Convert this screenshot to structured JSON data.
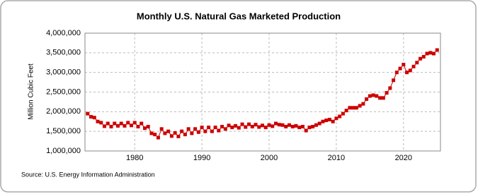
{
  "chart_data": {
    "type": "line",
    "title": "Monthly U.S. Natural Gas Marketed Production",
    "y_label": "Million Cubic Feet",
    "source": "Source: U.S. Energy Information Administration",
    "x": [
      1973,
      1973.5,
      1974,
      1974.5,
      1975,
      1975.5,
      1976,
      1976.5,
      1977,
      1977.5,
      1978,
      1978.5,
      1979,
      1979.5,
      1980,
      1980.5,
      1981,
      1981.5,
      1982,
      1982.5,
      1983,
      1983.5,
      1984,
      1984.5,
      1985,
      1985.5,
      1986,
      1986.5,
      1987,
      1987.5,
      1988,
      1988.5,
      1989,
      1989.5,
      1990,
      1990.5,
      1991,
      1991.5,
      1992,
      1992.5,
      1993,
      1993.5,
      1994,
      1994.5,
      1995,
      1995.5,
      1996,
      1996.5,
      1997,
      1997.5,
      1998,
      1998.5,
      1999,
      1999.5,
      2000,
      2000.5,
      2001,
      2001.5,
      2002,
      2002.5,
      2003,
      2003.5,
      2004,
      2004.5,
      2005,
      2005.5,
      2006,
      2006.5,
      2007,
      2007.5,
      2008,
      2008.5,
      2009,
      2009.5,
      2010,
      2010.5,
      2011,
      2011.5,
      2012,
      2012.5,
      2013,
      2013.5,
      2014,
      2014.5,
      2015,
      2015.5,
      2016,
      2016.5,
      2017,
      2017.5,
      2018,
      2018.5,
      2019,
      2019.5,
      2020,
      2020.5,
      2021,
      2021.5,
      2022,
      2022.5,
      2023,
      2023.5,
      2024,
      2024.5,
      2025
    ],
    "series": [
      {
        "color": "#cc0000",
        "values": [
          1950000,
          1870000,
          1850000,
          1750000,
          1720000,
          1630000,
          1700000,
          1620000,
          1700000,
          1640000,
          1700000,
          1640000,
          1720000,
          1650000,
          1720000,
          1620000,
          1700000,
          1580000,
          1620000,
          1450000,
          1420000,
          1340000,
          1560000,
          1450000,
          1500000,
          1380000,
          1460000,
          1370000,
          1500000,
          1420000,
          1560000,
          1450000,
          1560000,
          1480000,
          1600000,
          1500000,
          1600000,
          1500000,
          1600000,
          1520000,
          1620000,
          1560000,
          1650000,
          1600000,
          1640000,
          1590000,
          1680000,
          1610000,
          1680000,
          1620000,
          1670000,
          1610000,
          1650000,
          1600000,
          1660000,
          1630000,
          1700000,
          1670000,
          1660000,
          1620000,
          1660000,
          1620000,
          1640000,
          1600000,
          1620000,
          1520000,
          1600000,
          1620000,
          1660000,
          1700000,
          1750000,
          1780000,
          1800000,
          1750000,
          1830000,
          1880000,
          1950000,
          2030000,
          2100000,
          2100000,
          2100000,
          2150000,
          2200000,
          2320000,
          2400000,
          2420000,
          2400000,
          2350000,
          2350000,
          2480000,
          2600000,
          2800000,
          3000000,
          3100000,
          3200000,
          3000000,
          3050000,
          3150000,
          3250000,
          3350000,
          3400000,
          3480000,
          3500000,
          3480000,
          3570000
        ]
      }
    ],
    "xlim": [
      1972.6,
      2025.5
    ],
    "xticks": [
      1980,
      1990,
      2000,
      2010,
      2020
    ],
    "ylim": [
      1000000,
      4000000
    ],
    "yticks": [
      {
        "value": 1000000,
        "label": "1,000,000"
      },
      {
        "value": 1500000,
        "label": "1,500,000"
      },
      {
        "value": 2000000,
        "label": "2,000,000"
      },
      {
        "value": 2500000,
        "label": "2,500,000"
      },
      {
        "value": 3000000,
        "label": "3,000,000"
      },
      {
        "value": 3500000,
        "label": "3,500,000"
      },
      {
        "value": 4000000,
        "label": "4,000,000"
      }
    ],
    "grid": true
  }
}
